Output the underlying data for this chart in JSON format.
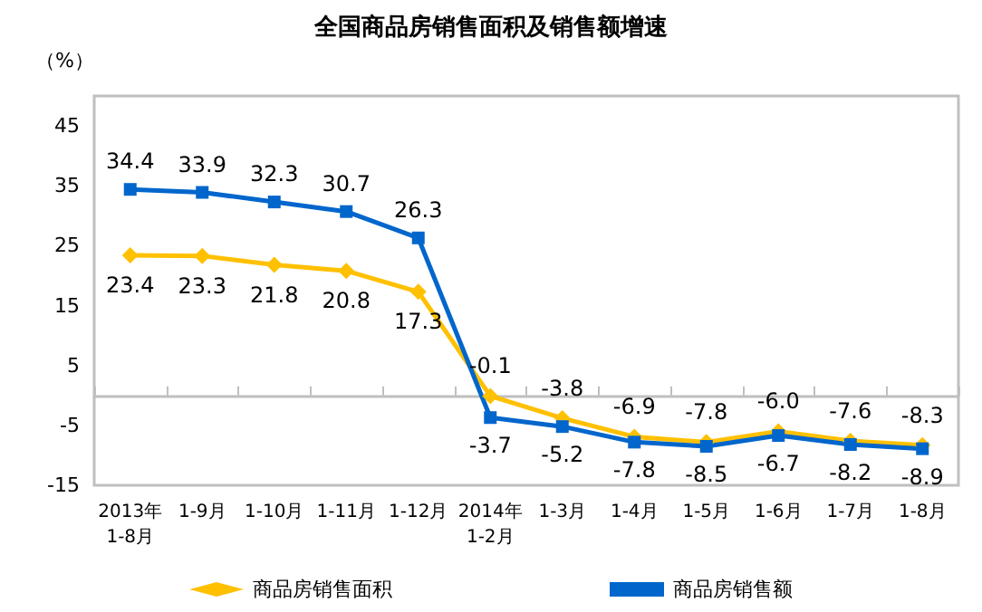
{
  "chart_data": {
    "type": "line",
    "title": "全国商品房销售面积及销售额增速",
    "ylabel": "（%）",
    "categories": [
      "2013年\n1-8月",
      "1-9月",
      "1-10月",
      "1-11月",
      "1-12月",
      "2014年\n1-2月",
      "1-3月",
      "1-4月",
      "1-5月",
      "1-6月",
      "1-7月",
      "1-8月"
    ],
    "series": [
      {
        "name": "商品房销售面积",
        "color": "#ffc000",
        "marker": "diamond",
        "values": [
          23.4,
          23.3,
          21.8,
          20.8,
          17.3,
          -0.1,
          -3.8,
          -6.9,
          -7.8,
          -6.0,
          -7.6,
          -8.3
        ],
        "value_labels": [
          "23.4",
          "23.3",
          "21.8",
          "20.8",
          "17.3",
          "-0.1",
          "-3.8",
          "-6.9",
          "-7.8",
          "-6.0",
          "-7.6",
          "-8.3"
        ]
      },
      {
        "name": "商品房销售额",
        "color": "#0066cc",
        "marker": "square",
        "values": [
          34.4,
          33.9,
          32.3,
          30.7,
          26.3,
          -3.7,
          -5.2,
          -7.8,
          -8.5,
          -6.7,
          -8.2,
          -8.9
        ],
        "value_labels": [
          "34.4",
          "33.9",
          "32.3",
          "30.7",
          "26.3",
          "-3.7",
          "-5.2",
          "-7.8",
          "-8.5",
          "-6.7",
          "-8.2",
          "-8.9"
        ]
      }
    ],
    "ylim": [
      -15,
      50
    ],
    "yticks": [
      -15,
      -5,
      5,
      15,
      25,
      35,
      45
    ],
    "legend": "bottom",
    "grid": false
  }
}
